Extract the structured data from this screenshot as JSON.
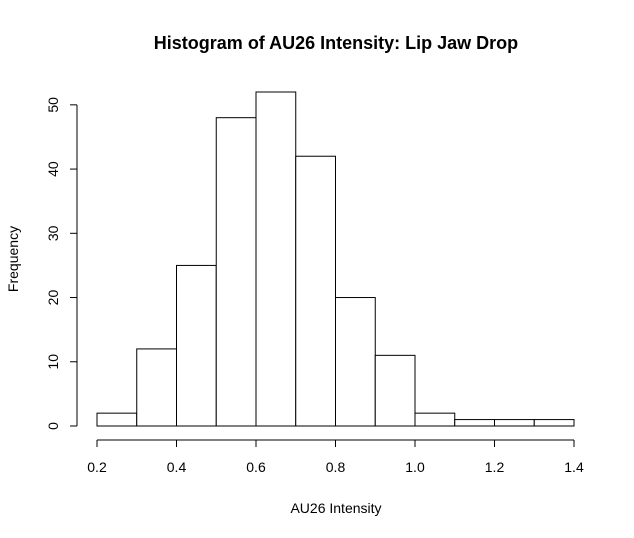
{
  "chart_data": {
    "type": "bar",
    "title": "Histogram of AU26 Intensity: Lip Jaw Drop",
    "xlabel": "AU26 Intensity",
    "ylabel": "Frequency",
    "bins": [
      {
        "start": 0.2,
        "end": 0.3,
        "count": 2
      },
      {
        "start": 0.3,
        "end": 0.4,
        "count": 12
      },
      {
        "start": 0.4,
        "end": 0.5,
        "count": 25
      },
      {
        "start": 0.5,
        "end": 0.6,
        "count": 48
      },
      {
        "start": 0.6,
        "end": 0.7,
        "count": 52
      },
      {
        "start": 0.7,
        "end": 0.8,
        "count": 42
      },
      {
        "start": 0.8,
        "end": 0.9,
        "count": 20
      },
      {
        "start": 0.9,
        "end": 1.0,
        "count": 11
      },
      {
        "start": 1.0,
        "end": 1.1,
        "count": 2
      },
      {
        "start": 1.1,
        "end": 1.2,
        "count": 1
      },
      {
        "start": 1.2,
        "end": 1.3,
        "count": 1
      },
      {
        "start": 1.3,
        "end": 1.4,
        "count": 1
      }
    ],
    "xlim": [
      0.2,
      1.4
    ],
    "ylim": [
      0,
      52
    ],
    "x_ticks": [
      0.2,
      0.4,
      0.6,
      0.8,
      1.0,
      1.2,
      1.4
    ],
    "x_tick_labels": [
      "0.2",
      "0.4",
      "0.6",
      "0.8",
      "1.0",
      "1.2",
      "1.4"
    ],
    "y_ticks": [
      0,
      10,
      20,
      30,
      40,
      50
    ],
    "y_tick_labels": [
      "0",
      "10",
      "20",
      "30",
      "40",
      "50"
    ],
    "grid": false,
    "legend": "none"
  }
}
